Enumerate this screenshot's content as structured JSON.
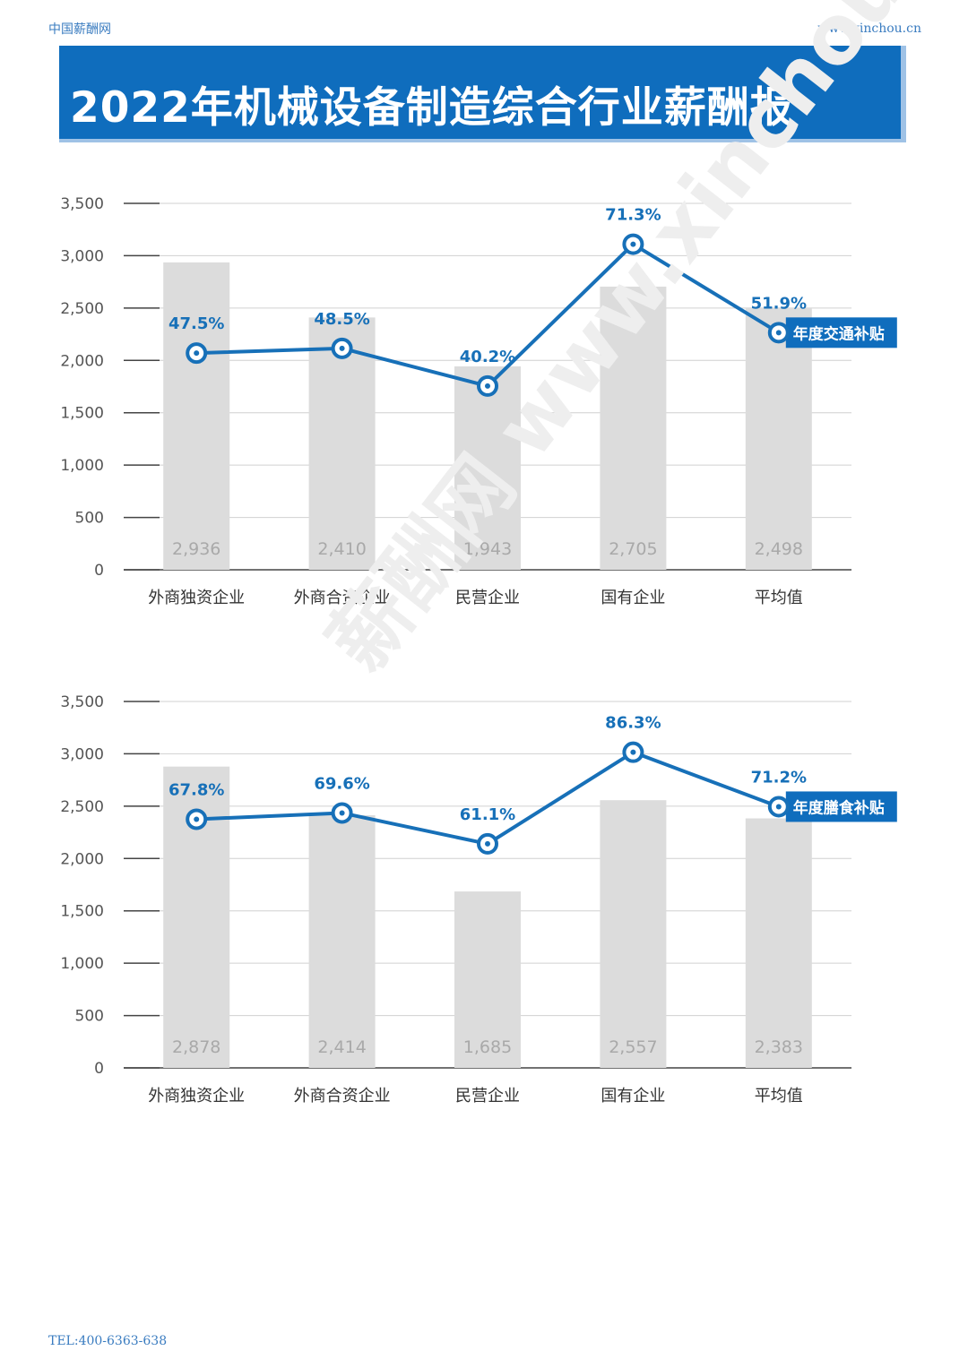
{
  "header": {
    "site_name": "中国薪酬网",
    "site_url": "www.xinchou.cn"
  },
  "title": "2022年机械设备制造综合行业薪酬报",
  "watermark": "薪酬网 www.xinchou.cn",
  "footer": {
    "tel": "TEL:400-6363-638"
  },
  "colors": {
    "accent": "#0f6dbd",
    "bar": "#dcdcdc",
    "line": "#1770b8"
  },
  "chart_data": [
    {
      "type": "bar",
      "categories": [
        "外商独资企业",
        "外商合资企业",
        "民营企业",
        "国有企业",
        "平均值"
      ],
      "values": [
        2936,
        2410,
        1943,
        2705,
        2498
      ],
      "value_labels": [
        "2,936",
        "2,410",
        "1,943",
        "2,705",
        "2,498"
      ],
      "line_series": {
        "name": "年度交通补贴",
        "values": [
          2070,
          2115,
          1755,
          3110,
          2265
        ],
        "labels": [
          "47.5%",
          "48.5%",
          "40.2%",
          "71.3%",
          "51.9%"
        ]
      },
      "yticks": [
        "0",
        "500",
        "1,000",
        "1,500",
        "2,000",
        "2,500",
        "3,000",
        "3,500"
      ],
      "ylim": [
        0,
        3500
      ]
    },
    {
      "type": "bar",
      "categories": [
        "外商独资企业",
        "外商合资企业",
        "民营企业",
        "国有企业",
        "平均值"
      ],
      "values": [
        2878,
        2414,
        1685,
        2557,
        2383
      ],
      "value_labels": [
        "2,878",
        "2,414",
        "1,685",
        "2,557",
        "2,383"
      ],
      "line_series": {
        "name": "年度膳食补贴",
        "values": [
          2375,
          2435,
          2140,
          3015,
          2495
        ],
        "labels": [
          "67.8%",
          "69.6%",
          "61.1%",
          "86.3%",
          "71.2%"
        ]
      },
      "yticks": [
        "0",
        "500",
        "1,000",
        "1,500",
        "2,000",
        "2,500",
        "3,000",
        "3,500"
      ],
      "ylim": [
        0,
        3500
      ]
    }
  ]
}
